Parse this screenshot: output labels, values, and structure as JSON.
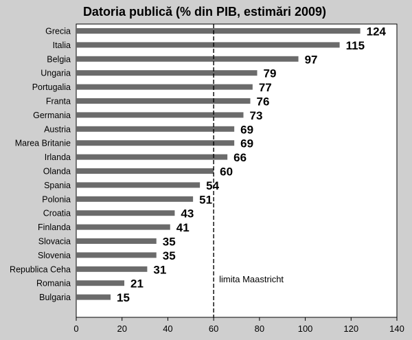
{
  "chart_data": {
    "type": "bar",
    "orientation": "horizontal",
    "title": "Datoria publică (% din PIB, estimări 2009)",
    "categories": [
      "Grecia",
      "Italia",
      "Belgia",
      "Ungaria",
      "Portugalia",
      "Franta",
      "Germania",
      "Austria",
      "Marea Britanie",
      "Irlanda",
      "Olanda",
      "Spania",
      "Polonia",
      "Croatia",
      "Finlanda",
      "Slovacia",
      "Slovenia",
      "Republica Ceha",
      "Romania",
      "Bulgaria"
    ],
    "values": [
      124,
      115,
      97,
      79,
      77,
      76,
      73,
      69,
      69,
      66,
      60,
      54,
      51,
      43,
      41,
      35,
      35,
      31,
      21,
      15
    ],
    "xlim": [
      0,
      140
    ],
    "xticks": [
      0,
      20,
      40,
      60,
      80,
      100,
      120,
      140
    ],
    "xlabel": "",
    "ylabel": "",
    "grid": false,
    "reference_line": {
      "value": 60,
      "label": "limita Maastricht",
      "style": "dashed"
    },
    "colors": {
      "bar": "#6b6b6b",
      "plot_bg": "#ffffff",
      "page_bg": "#cfcfcf",
      "text": "#000000"
    }
  }
}
